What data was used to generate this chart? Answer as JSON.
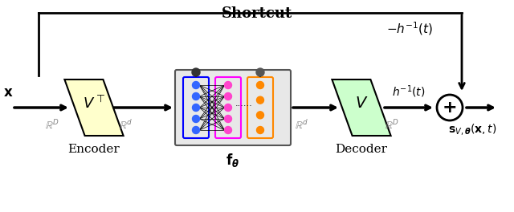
{
  "title": "Shortcut",
  "bg_color": "#ffffff",
  "encoder_color": "#ffffcc",
  "decoder_color": "#ccffcc",
  "nn_bg_color": "#f0f0f0",
  "blue_layer_color": "#4444ff",
  "pink_layer_color": "#ff44ff",
  "orange_layer_color": "#ff8800",
  "node_dark": "#333333",
  "arrow_color": "#000000",
  "shortcut_box_color": "#000000"
}
